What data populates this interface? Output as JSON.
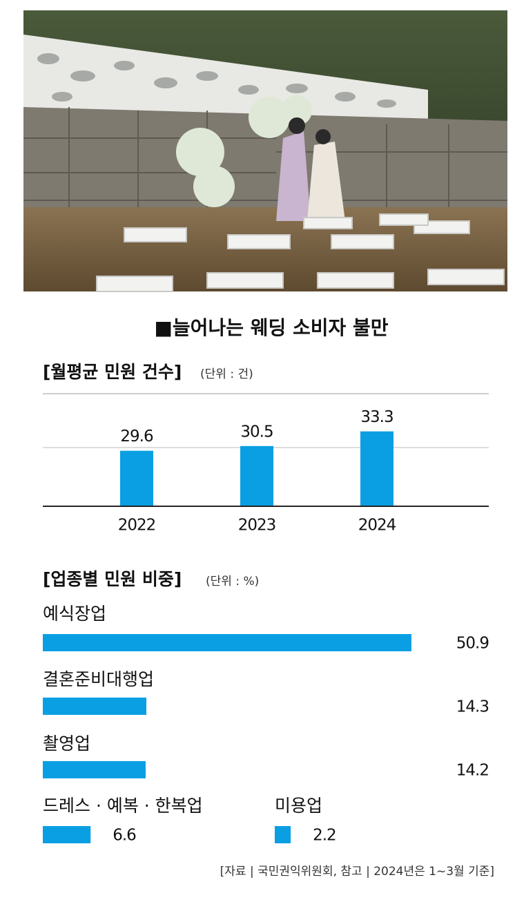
{
  "title": "■늘어나는 웨딩 소비자 불만",
  "chart_data": [
    {
      "type": "bar",
      "title": "[월평균 민원 건수]",
      "unit": "(단위 : 건)",
      "categories": [
        "2022",
        "2023",
        "2024"
      ],
      "values": [
        29.6,
        30.5,
        33.3
      ],
      "color": "#0a9fe2",
      "ylim": [
        19,
        40.5
      ]
    },
    {
      "type": "hbar",
      "title": "[업종별 민원 비중]",
      "unit": "(단위 : %)",
      "categories": [
        "예식장업",
        "결혼준비대행업",
        "촬영업",
        "드레스 · 예복 · 한복업",
        "미용업"
      ],
      "values": [
        50.9,
        14.3,
        14.2,
        6.6,
        2.2
      ],
      "color": "#0a9fe2",
      "xlim": [
        0,
        51
      ]
    }
  ],
  "source": "[자료 | 국민권익위원회, 참고 | 2024년은 1~3월 기준]"
}
